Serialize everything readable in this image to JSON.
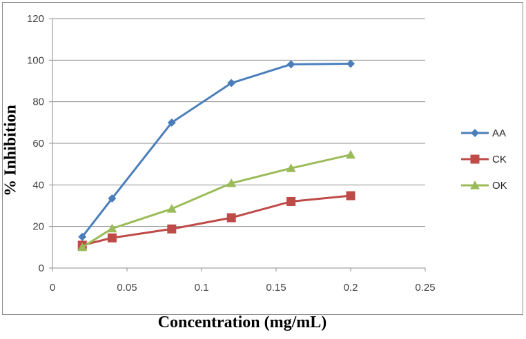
{
  "chart_data": {
    "type": "line",
    "title": "",
    "xlabel": "Concentration (mg/mL)",
    "ylabel": "% Inhibition",
    "xlim": [
      0,
      0.25
    ],
    "ylim": [
      0,
      120
    ],
    "x_ticks": [
      0,
      0.05,
      0.1,
      0.15,
      0.2,
      0.25
    ],
    "x_tick_labels": [
      "0",
      "0.05",
      "0.1",
      "0.15",
      "0.2",
      "0.25"
    ],
    "y_ticks": [
      0,
      20,
      40,
      60,
      80,
      100,
      120
    ],
    "y_tick_labels": [
      "0",
      "20",
      "40",
      "60",
      "80",
      "100",
      "120"
    ],
    "grid": "horizontal",
    "legend_position": "right",
    "x": [
      0.02,
      0.04,
      0.08,
      0.12,
      0.16,
      0.2
    ],
    "series": [
      {
        "name": "AA",
        "marker": "diamond",
        "color": "#4a7ebb",
        "values": [
          15,
          33.5,
          70,
          89,
          98,
          98.3
        ]
      },
      {
        "name": "CK",
        "marker": "square",
        "color": "#be4b48",
        "values": [
          11,
          14.5,
          18.8,
          24.2,
          32,
          34.8
        ]
      },
      {
        "name": "OK",
        "marker": "triangle",
        "color": "#9bbb59",
        "values": [
          10,
          19,
          28.5,
          40.8,
          48,
          54.5
        ]
      }
    ]
  }
}
